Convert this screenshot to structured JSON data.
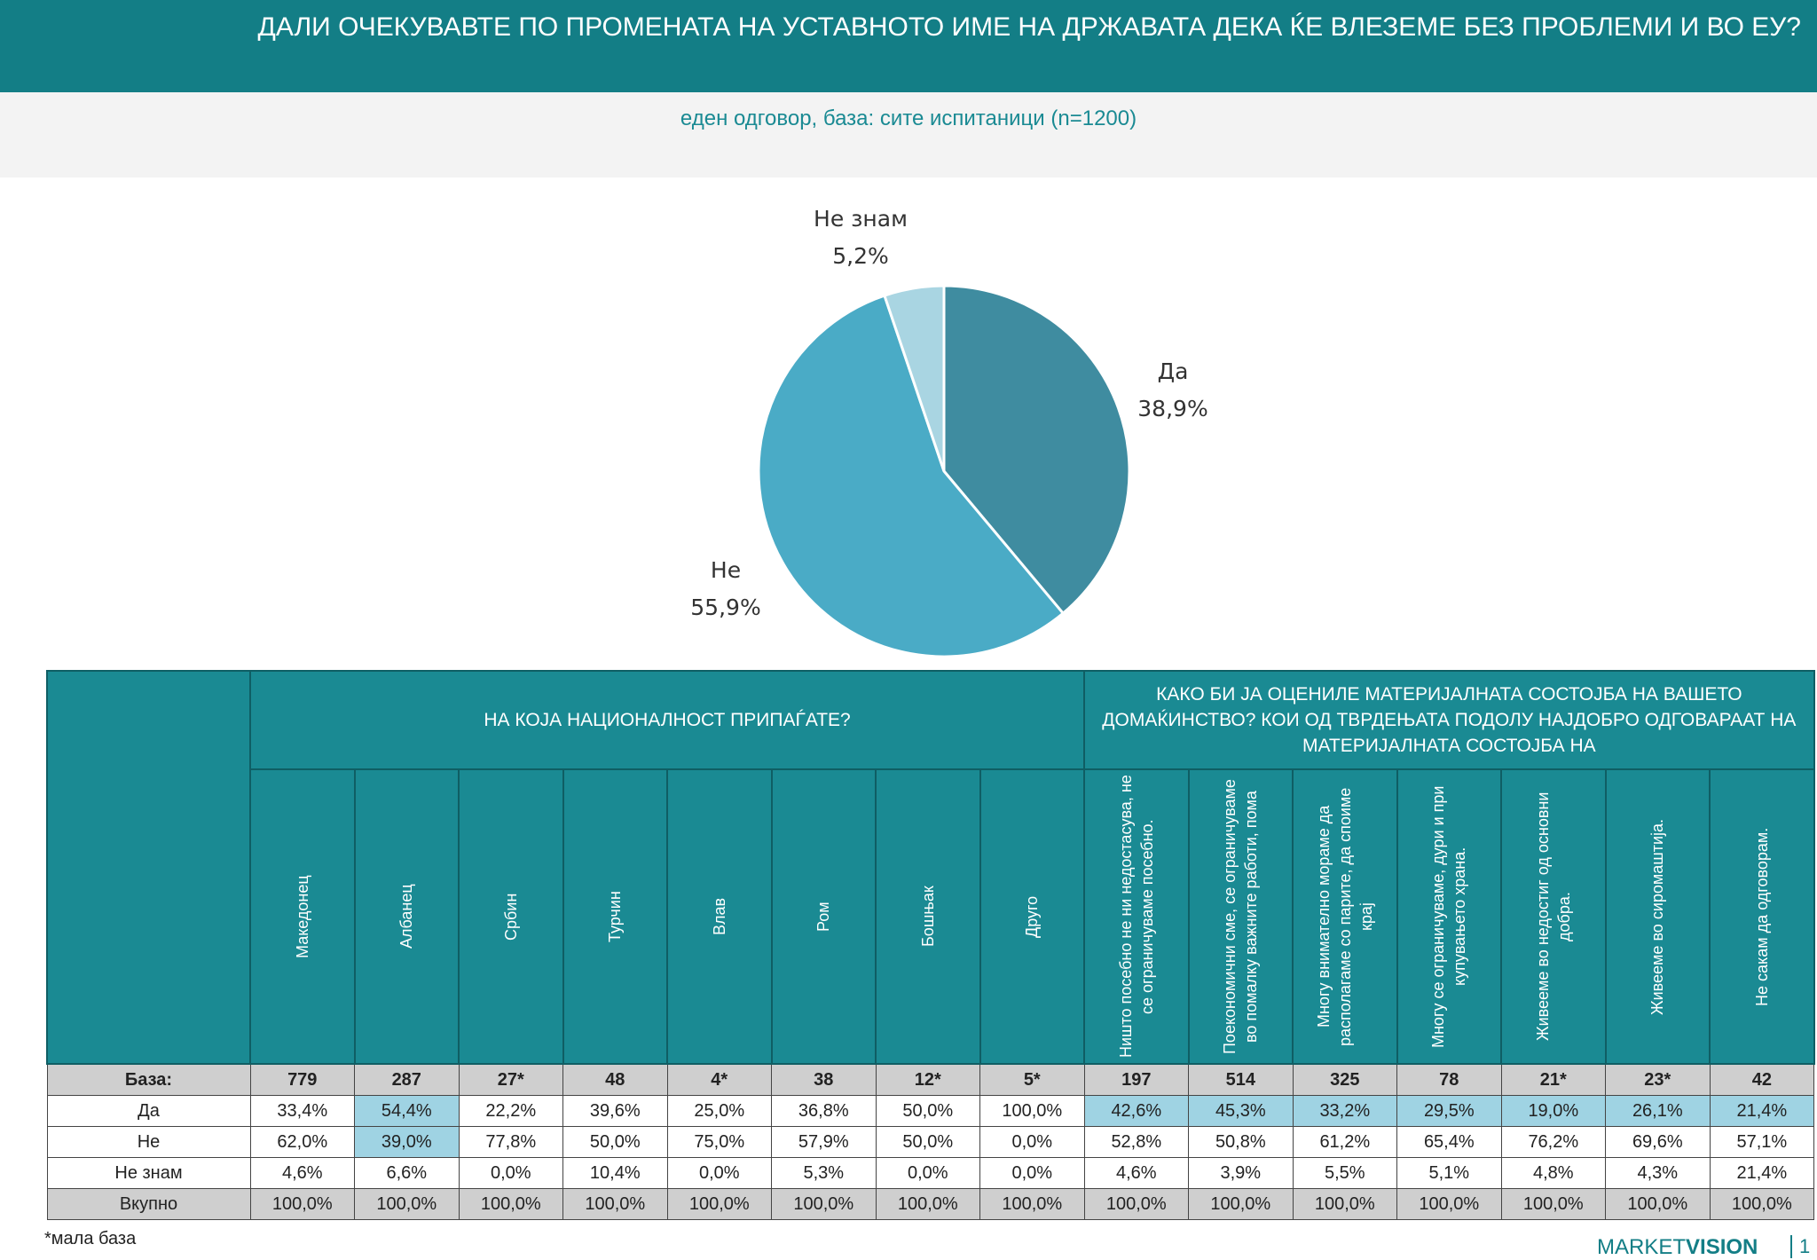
{
  "header": {
    "title": "ДАЛИ ОЧЕКУВАВТЕ ПО ПРОМЕНАТА НА УСТАВНОТО ИМЕ НА ДРЖАВАТА ДЕКА ЌЕ ВЛЕЗЕМЕ БЕЗ ПРОБЛЕМИ И ВО ЕУ?",
    "subtitle": "еден одговор, база: сите испитаници (n=1200)"
  },
  "chart_data": {
    "type": "pie",
    "categories": [
      "Да",
      "Не",
      "Не знам"
    ],
    "values": [
      38.9,
      55.9,
      5.2
    ],
    "value_labels": [
      "38,9%",
      "55,9%",
      "5,2%"
    ],
    "colors": [
      "#3f8ca0",
      "#4aabc6",
      "#a9d5e2"
    ]
  },
  "table": {
    "group_headers": [
      "НА КОЈА НАЦИОНАЛНОСТ ПРИПАЃАТЕ?",
      "КАКО БИ ЈА ОЦЕНИЛЕ МАТЕРИЈАЛНАТА СОСТОЈБА НА ВАШЕТО ДОМАЌИНСТВО? КОИ ОД ТВРДЕЊАТА ПОДОЛУ НАЈДОБРО ОДГОВАРААТ НА МАТЕРИЈАЛНАТА СОСТОЈБА НА"
    ],
    "columns": [
      "Македонец",
      "Албанец",
      "Србин",
      "Турчин",
      "Влав",
      "Ром",
      "Бошњак",
      "Друго",
      "Ништо посебно не ни недостасува, не се ограничуваме посебно.",
      "Поекономични сме, се ограничуваме во помалку важните работи, пома",
      "Многу внимателно мораме да располагаме со парите, да споиме крај",
      "Многу се ограничуваме, дури и при купувањето храна.",
      "Живееме во недостиг од основни добра.",
      "Живееме во сиромаштија.",
      "Не сакам да одговорам."
    ],
    "rows": [
      [
        "База:",
        "779",
        "287",
        "27*",
        "48",
        "4*",
        "38",
        "12*",
        "5*",
        "197",
        "514",
        "325",
        "78",
        "21*",
        "23*",
        "42"
      ],
      [
        "Да",
        "33,4%",
        "54,4%",
        "22,2%",
        "39,6%",
        "25,0%",
        "36,8%",
        "50,0%",
        "100,0%",
        "42,6%",
        "45,3%",
        "33,2%",
        "29,5%",
        "19,0%",
        "26,1%",
        "21,4%"
      ],
      [
        "Не",
        "62,0%",
        "39,0%",
        "77,8%",
        "50,0%",
        "75,0%",
        "57,9%",
        "50,0%",
        "0,0%",
        "52,8%",
        "50,8%",
        "61,2%",
        "65,4%",
        "76,2%",
        "69,6%",
        "57,1%"
      ],
      [
        "Не знам",
        "4,6%",
        "6,6%",
        "0,0%",
        "10,4%",
        "0,0%",
        "5,3%",
        "0,0%",
        "0,0%",
        "4,6%",
        "3,9%",
        "5,5%",
        "5,1%",
        "4,8%",
        "4,3%",
        "21,4%"
      ],
      [
        "Вкупно",
        "100,0%",
        "100,0%",
        "100,0%",
        "100,0%",
        "100,0%",
        "100,0%",
        "100,0%",
        "100,0%",
        "100,0%",
        "100,0%",
        "100,0%",
        "100,0%",
        "100,0%",
        "100,0%",
        "100,0%"
      ]
    ]
  },
  "footer": {
    "note": "*мала база",
    "brand_light": "MARKET",
    "brand_bold": "VISION",
    "page": "1"
  }
}
